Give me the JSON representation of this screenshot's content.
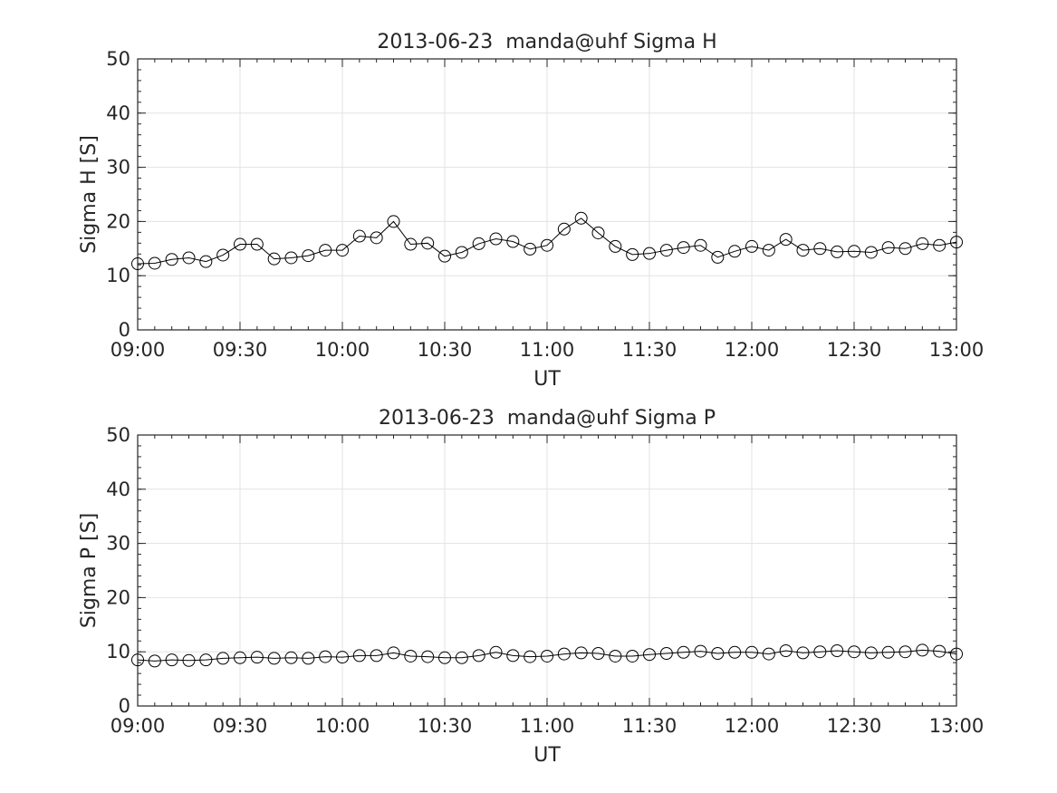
{
  "chart_data": [
    {
      "type": "line",
      "title": "2013-06-23  manda@uhf Sigma H",
      "xlabel": "UT",
      "ylabel": "Sigma H [S]",
      "ylim": [
        0,
        50
      ],
      "yticks": [
        "0",
        "10",
        "20",
        "30",
        "40",
        "50"
      ],
      "xlim": [
        "09:00",
        "13:00"
      ],
      "xticks": [
        "09:00",
        "09:30",
        "10:00",
        "10:30",
        "11:00",
        "11:30",
        "12:00",
        "12:30",
        "13:00"
      ],
      "grid": true,
      "marker": "open-circle",
      "color": "#000000",
      "series": [
        {
          "x": [
            "09:00",
            "09:05",
            "09:10",
            "09:15",
            "09:20",
            "09:25",
            "09:30",
            "09:35",
            "09:40",
            "09:45",
            "09:50",
            "09:55",
            "10:00",
            "10:05",
            "10:10",
            "10:15",
            "10:20",
            "10:25",
            "10:30",
            "10:35",
            "10:40",
            "10:45",
            "10:50",
            "10:55",
            "11:00",
            "11:05",
            "11:10",
            "11:15",
            "11:20",
            "11:25",
            "11:30",
            "11:35",
            "11:40",
            "11:45",
            "11:50",
            "11:55",
            "12:00",
            "12:05",
            "12:10",
            "12:15",
            "12:20",
            "12:25",
            "12:30",
            "12:35",
            "12:40",
            "12:45",
            "12:50",
            "12:55",
            "13:00"
          ],
          "values": [
            12.2,
            12.3,
            13.0,
            13.3,
            12.6,
            13.8,
            15.8,
            15.8,
            13.1,
            13.3,
            13.7,
            14.7,
            14.7,
            17.3,
            17.0,
            20.0,
            15.8,
            16.0,
            13.6,
            14.3,
            15.9,
            16.8,
            16.3,
            14.9,
            15.6,
            18.6,
            20.6,
            17.9,
            15.4,
            13.9,
            14.1,
            14.7,
            15.2,
            15.6,
            13.4,
            14.5,
            15.4,
            14.7,
            16.7,
            14.7,
            15.0,
            14.4,
            14.5,
            14.3,
            15.2,
            15.0,
            15.9,
            15.6,
            16.2
          ]
        }
      ]
    },
    {
      "type": "line",
      "title": "2013-06-23  manda@uhf Sigma P",
      "xlabel": "UT",
      "ylabel": "Sigma P [S]",
      "ylim": [
        0,
        50
      ],
      "yticks": [
        "0",
        "10",
        "20",
        "30",
        "40",
        "50"
      ],
      "xlim": [
        "09:00",
        "13:00"
      ],
      "xticks": [
        "09:00",
        "09:30",
        "10:00",
        "10:30",
        "11:00",
        "11:30",
        "12:00",
        "12:30",
        "13:00"
      ],
      "grid": true,
      "marker": "open-circle",
      "color": "#000000",
      "series": [
        {
          "x": [
            "09:00",
            "09:05",
            "09:10",
            "09:15",
            "09:20",
            "09:25",
            "09:30",
            "09:35",
            "09:40",
            "09:45",
            "09:50",
            "09:55",
            "10:00",
            "10:05",
            "10:10",
            "10:15",
            "10:20",
            "10:25",
            "10:30",
            "10:35",
            "10:40",
            "10:45",
            "10:50",
            "10:55",
            "11:00",
            "11:05",
            "11:10",
            "11:15",
            "11:20",
            "11:25",
            "11:30",
            "11:35",
            "11:40",
            "11:45",
            "11:50",
            "11:55",
            "12:00",
            "12:05",
            "12:10",
            "12:15",
            "12:20",
            "12:25",
            "12:30",
            "12:35",
            "12:40",
            "12:45",
            "12:50",
            "12:55",
            "13:00"
          ],
          "values": [
            8.5,
            8.3,
            8.5,
            8.4,
            8.5,
            8.8,
            8.9,
            9.0,
            8.8,
            8.9,
            8.8,
            9.1,
            9.0,
            9.3,
            9.3,
            9.8,
            9.2,
            9.1,
            8.9,
            8.9,
            9.3,
            9.9,
            9.3,
            9.1,
            9.2,
            9.6,
            9.8,
            9.7,
            9.2,
            9.2,
            9.5,
            9.7,
            9.9,
            10.1,
            9.7,
            9.9,
            9.9,
            9.6,
            10.2,
            9.8,
            10.0,
            10.2,
            10.0,
            9.8,
            9.9,
            10.0,
            10.3,
            10.1,
            9.6
          ]
        }
      ]
    }
  ]
}
